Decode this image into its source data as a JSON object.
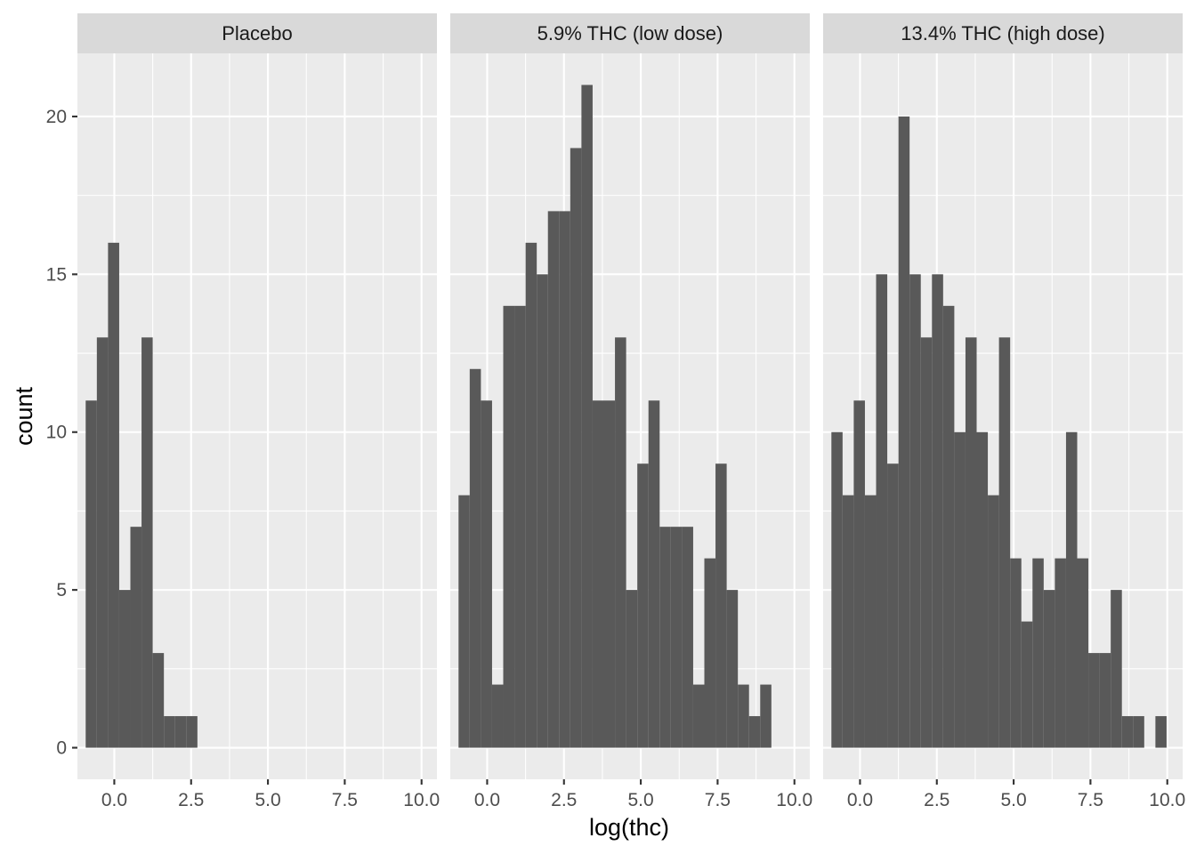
{
  "chart_data": {
    "type": "bar",
    "xlabel": "log(thc)",
    "ylabel": "count",
    "xlim": [
      -1.2,
      10.5
    ],
    "ylim": [
      -1.0,
      22.0
    ],
    "x_ticks": [
      0.0,
      2.5,
      5.0,
      7.5,
      10.0
    ],
    "x_tick_labels": [
      "0.0",
      "2.5",
      "5.0",
      "7.5",
      "10.0"
    ],
    "y_ticks": [
      0,
      5,
      10,
      15,
      20
    ],
    "y_tick_labels": [
      "0",
      "5",
      "10",
      "15",
      "20"
    ],
    "bin_width": 0.3636,
    "first_bin_start": -0.931,
    "grid": true,
    "facets": [
      {
        "label": "Placebo",
        "counts": [
          11,
          13,
          16,
          5,
          7,
          13,
          3,
          1,
          1,
          1
        ]
      },
      {
        "label": "5.9% THC (low dose)",
        "counts": [
          8,
          12,
          11,
          2,
          14,
          14,
          16,
          15,
          17,
          17,
          19,
          21,
          11,
          11,
          13,
          5,
          9,
          11,
          7,
          7,
          7,
          2,
          6,
          9,
          5,
          2,
          1,
          2
        ]
      },
      {
        "label": "13.4% THC (high dose)",
        "counts": [
          10,
          8,
          11,
          8,
          15,
          9,
          20,
          15,
          13,
          15,
          14,
          10,
          13,
          10,
          8,
          13,
          6,
          4,
          6,
          5,
          6,
          10,
          6,
          3,
          3,
          5,
          1,
          1,
          0,
          1
        ]
      }
    ]
  }
}
